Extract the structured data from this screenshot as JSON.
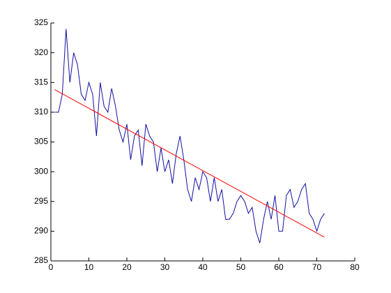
{
  "chart_data": {
    "type": "line",
    "series": [
      {
        "color": "#1010a0",
        "x": [
          1,
          2,
          3,
          4,
          5,
          6,
          7,
          8,
          9,
          10,
          11,
          12,
          13,
          14,
          15,
          16,
          17,
          18,
          19,
          20,
          21,
          22,
          23,
          24,
          25,
          26,
          27,
          28,
          29,
          30,
          31,
          32,
          33,
          34,
          35,
          36,
          37,
          38,
          39,
          40,
          41,
          42,
          43,
          44,
          45,
          46,
          47,
          48,
          49,
          50,
          51,
          52,
          53,
          54,
          55,
          56,
          57,
          58,
          59,
          60,
          61,
          62,
          63,
          64,
          65,
          66,
          67,
          68,
          69,
          70,
          71,
          72
        ],
        "values": [
          310,
          310,
          313,
          324,
          315,
          320,
          318,
          313,
          312,
          315,
          313,
          306,
          315,
          311,
          310,
          314,
          311,
          307,
          305,
          308,
          302,
          306,
          307,
          301,
          308,
          306,
          305,
          300,
          304,
          300,
          302,
          298,
          303,
          306,
          302,
          297,
          295,
          299,
          297,
          300,
          299,
          295,
          299,
          295,
          297,
          292,
          292,
          293,
          295,
          296,
          295,
          293,
          294,
          290,
          288,
          292,
          295,
          292,
          296,
          290,
          290,
          296,
          297,
          294,
          295,
          297,
          298,
          293,
          292,
          290,
          292,
          293
        ]
      },
      {
        "color": "#ff0000",
        "x": [
          1,
          72
        ],
        "values": [
          313.8,
          289
        ]
      }
    ],
    "xlim": [
      0,
      80
    ],
    "xticks": [
      0,
      10,
      20,
      30,
      40,
      50,
      60,
      70,
      80
    ],
    "ylim": [
      285,
      325
    ],
    "yticks": [
      285,
      290,
      295,
      300,
      305,
      310,
      315,
      320,
      325
    ]
  }
}
